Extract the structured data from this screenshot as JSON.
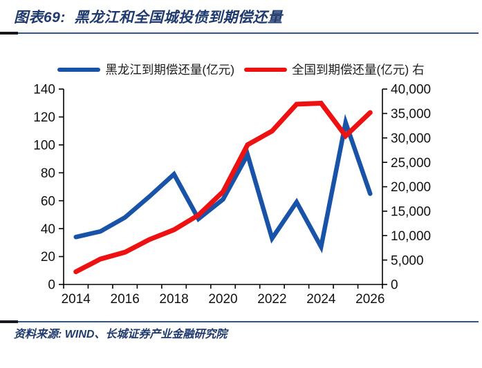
{
  "header": {
    "title": "图表69:  黑龙江和全国城投债到期偿还量"
  },
  "footer": {
    "source": "资料来源: WIND、长城证券产业金融研究院"
  },
  "colors": {
    "title_text": "#1f3a6e",
    "rule_blue": "#2f5496",
    "rule_black": "#16181d",
    "axis": "#000000",
    "heilongjiang_line": "#1953a8",
    "national_line": "#ee1111"
  },
  "chart_data": {
    "type": "line",
    "title": "黑龙江和全国城投债到期偿还量",
    "x": [
      2014,
      2015,
      2016,
      2017,
      2018,
      2019,
      2020,
      2021,
      2022,
      2023,
      2024,
      2025,
      2026
    ],
    "series": [
      {
        "name": "黑龙江到期偿还量(亿元)",
        "axis": "left",
        "color": "#1953a8",
        "values": [
          34,
          38,
          48,
          63,
          79,
          47,
          61,
          93,
          33,
          59,
          27,
          116,
          65
        ]
      },
      {
        "name": "全国到期偿还量(亿元) 右",
        "axis": "right",
        "color": "#ee1111",
        "values": [
          2600,
          5200,
          6600,
          9200,
          11200,
          14200,
          19000,
          28600,
          31400,
          36900,
          37100,
          30400,
          35200
        ]
      }
    ],
    "left_axis": {
      "min": 0,
      "max": 140,
      "step": 20
    },
    "right_axis": {
      "min": 0,
      "max": 40000,
      "step": 5000
    },
    "x_axis": {
      "label_every": 2
    },
    "legend_position": "top",
    "grid": false
  }
}
